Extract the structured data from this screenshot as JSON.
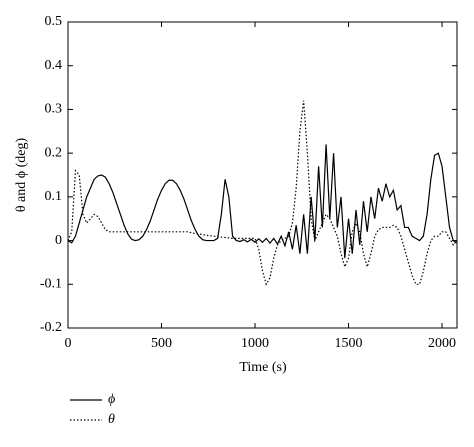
{
  "chart_data": {
    "type": "line",
    "x_label": "Time (s)",
    "y_label": "θ and ϕ (deg)",
    "x": [
      0,
      20,
      40,
      60,
      80,
      100,
      120,
      140,
      160,
      180,
      200,
      220,
      240,
      260,
      280,
      300,
      320,
      340,
      360,
      380,
      400,
      420,
      440,
      460,
      480,
      500,
      520,
      540,
      560,
      580,
      600,
      620,
      640,
      660,
      680,
      700,
      720,
      740,
      760,
      780,
      800,
      820,
      840,
      860,
      880,
      900,
      920,
      940,
      960,
      980,
      1000,
      1020,
      1040,
      1060,
      1080,
      1100,
      1120,
      1140,
      1160,
      1180,
      1200,
      1220,
      1240,
      1260,
      1280,
      1300,
      1320,
      1340,
      1360,
      1380,
      1400,
      1420,
      1440,
      1460,
      1480,
      1500,
      1520,
      1540,
      1560,
      1580,
      1600,
      1620,
      1640,
      1660,
      1680,
      1700,
      1720,
      1740,
      1760,
      1780,
      1800,
      1820,
      1840,
      1860,
      1880,
      1900,
      1920,
      1940,
      1960,
      1980,
      2000,
      2020,
      2040,
      2060,
      2080
    ],
    "series": [
      {
        "name": "ϕ",
        "color": "#000000",
        "style": "solid",
        "values": [
          0,
          -0.005,
          0.01,
          0.04,
          0.07,
          0.1,
          0.12,
          0.14,
          0.148,
          0.15,
          0.145,
          0.13,
          0.11,
          0.085,
          0.06,
          0.035,
          0.015,
          0.003,
          0,
          0.002,
          0.01,
          0.025,
          0.045,
          0.07,
          0.095,
          0.115,
          0.13,
          0.138,
          0.138,
          0.13,
          0.115,
          0.095,
          0.07,
          0.045,
          0.025,
          0.01,
          0.002,
          0,
          0,
          0,
          0.005,
          0.06,
          0.14,
          0.1,
          0.01,
          0,
          -0.002,
          0.002,
          -0.003,
          0.003,
          -0.004,
          0.004,
          -0.004,
          0.005,
          -0.006,
          0.005,
          -0.008,
          0.01,
          -0.012,
          0.02,
          -0.02,
          0.035,
          -0.03,
          0.06,
          -0.03,
          0.1,
          0,
          0.17,
          0.03,
          0.22,
          0.05,
          0.2,
          0.03,
          0.1,
          -0.04,
          0.05,
          -0.03,
          0.07,
          -0.01,
          0.09,
          0.02,
          0.1,
          0.05,
          0.12,
          0.09,
          0.13,
          0.1,
          0.115,
          0.07,
          0.08,
          0.03,
          0.03,
          0.01,
          0.005,
          0,
          0.01,
          0.06,
          0.14,
          0.195,
          0.2,
          0.17,
          0.1,
          0.03,
          0,
          -0.005
        ]
      },
      {
        "name": "θ",
        "color": "#000000",
        "style": "dotted",
        "values": [
          0,
          0.02,
          0.16,
          0.15,
          0.06,
          0.04,
          0.05,
          0.06,
          0.055,
          0.04,
          0.025,
          0.02,
          0.02,
          0.02,
          0.02,
          0.02,
          0.02,
          0.02,
          0.02,
          0.02,
          0.02,
          0.02,
          0.02,
          0.02,
          0.02,
          0.02,
          0.02,
          0.02,
          0.02,
          0.02,
          0.02,
          0.02,
          0.02,
          0.018,
          0.016,
          0.015,
          0.014,
          0.012,
          0.011,
          0.01,
          0.01,
          0.008,
          0.007,
          0.006,
          0.005,
          0.005,
          0.005,
          0.005,
          0.005,
          0.005,
          0.005,
          -0.02,
          -0.07,
          -0.1,
          -0.085,
          -0.04,
          -0.01,
          0,
          0.005,
          0.01,
          0.04,
          0.12,
          0.25,
          0.32,
          0.2,
          0.05,
          0,
          0.02,
          0.04,
          0.06,
          0.05,
          0.03,
          0.01,
          -0.03,
          -0.06,
          -0.04,
          0.02,
          0.04,
          0.02,
          -0.03,
          -0.06,
          -0.03,
          0.01,
          0.025,
          0.03,
          0.03,
          0.03,
          0.035,
          0.03,
          0.01,
          -0.02,
          -0.05,
          -0.08,
          -0.1,
          -0.1,
          -0.07,
          -0.03,
          0,
          0.01,
          0.01,
          0.02,
          0.02,
          0.005,
          -0.01,
          0
        ]
      }
    ],
    "xlim": [
      0,
      2080
    ],
    "xticks": [
      0,
      500,
      1000,
      1500,
      2000
    ],
    "ylim": [
      -0.2,
      0.5
    ],
    "yticks": [
      -0.2,
      -0.1,
      0,
      0.1,
      0.2,
      0.3,
      0.4,
      0.5
    ],
    "grid": false,
    "legend": "below"
  }
}
